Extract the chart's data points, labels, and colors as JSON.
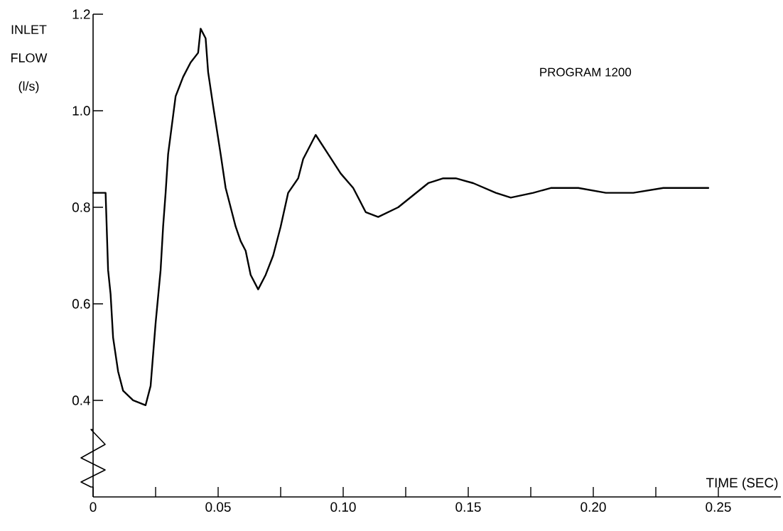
{
  "chart_data": {
    "type": "line",
    "xlabel": "TIME (SEC)",
    "ylabel": "INLET FLOW (l/s)",
    "annotations": [
      "PROGRAM 1200"
    ],
    "x": [
      0,
      0.005,
      0.006,
      0.007,
      0.008,
      0.01,
      0.012,
      0.016,
      0.021,
      0.023,
      0.025,
      0.027,
      0.028,
      0.029,
      0.03,
      0.032,
      0.033,
      0.036,
      0.039,
      0.042,
      0.043,
      0.045,
      0.046,
      0.048,
      0.051,
      0.053,
      0.057,
      0.059,
      0.061,
      0.063,
      0.066,
      0.069,
      0.072,
      0.075,
      0.078,
      0.082,
      0.084,
      0.089,
      0.094,
      0.099,
      0.104,
      0.109,
      0.114,
      0.122,
      0.134,
      0.14,
      0.145,
      0.152,
      0.161,
      0.167,
      0.176,
      0.183,
      0.194,
      0.205,
      0.216,
      0.228,
      0.236,
      0.246
    ],
    "series": [
      {
        "color": "#000000",
        "values": [
          0.83,
          0.83,
          0.67,
          0.62,
          0.53,
          0.46,
          0.42,
          0.4,
          0.39,
          0.43,
          0.56,
          0.67,
          0.76,
          0.83,
          0.91,
          0.99,
          1.03,
          1.07,
          1.1,
          1.12,
          1.17,
          1.15,
          1.08,
          1.01,
          0.91,
          0.84,
          0.76,
          0.73,
          0.71,
          0.66,
          0.63,
          0.66,
          0.7,
          0.76,
          0.83,
          0.86,
          0.9,
          0.95,
          0.91,
          0.87,
          0.84,
          0.79,
          0.78,
          0.8,
          0.85,
          0.86,
          0.86,
          0.85,
          0.83,
          0.82,
          0.83,
          0.84,
          0.84,
          0.83,
          0.83,
          0.84,
          0.84,
          0.84
        ]
      }
    ],
    "xlim": [
      0,
      0.275
    ],
    "ylim": [
      0.2,
      1.2
    ],
    "xticks": [
      0,
      {
        "value": 0.025,
        "label": null
      },
      0.05,
      {
        "value": 0.075,
        "label": null
      },
      {
        "value": 0.1,
        "label": "0.10"
      },
      {
        "value": 0.125,
        "label": null
      },
      0.15,
      {
        "value": 0.175,
        "label": null
      },
      {
        "value": 0.2,
        "label": "0.20"
      },
      {
        "value": 0.225,
        "label": null
      },
      0.25
    ],
    "yticks": [
      0.4,
      0.6,
      0.8,
      {
        "value": 1.0,
        "label": "1.0"
      },
      1.2
    ],
    "grid": false,
    "marker": "none",
    "line_style": "solid"
  }
}
